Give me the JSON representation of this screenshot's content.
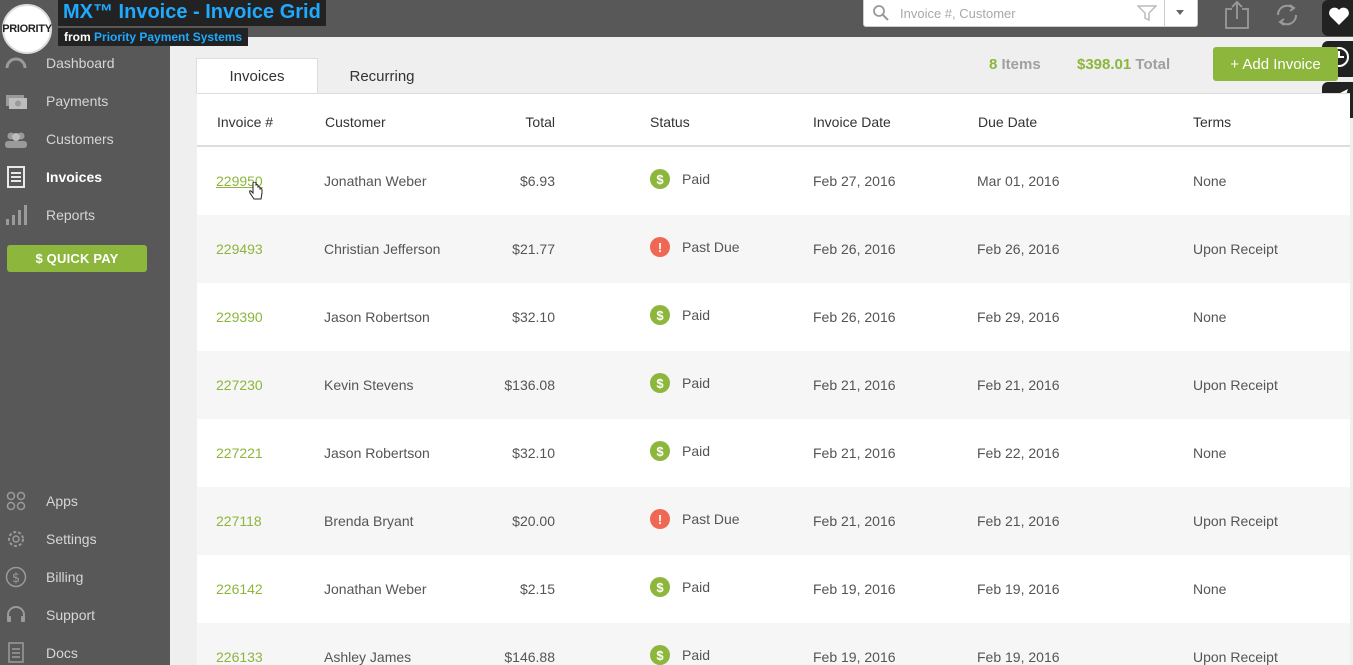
{
  "brand": {
    "logo_text": "PRIORITY",
    "title": "MX™ Invoice - Invoice Grid",
    "from_label": "from",
    "company": "Priority Payment Systems"
  },
  "sidebar": {
    "items": [
      {
        "label": "Dashboard",
        "icon": "dashboard-icon"
      },
      {
        "label": "Payments",
        "icon": "payments-icon"
      },
      {
        "label": "Customers",
        "icon": "customers-icon"
      },
      {
        "label": "Invoices",
        "icon": "invoices-icon",
        "active": true
      },
      {
        "label": "Reports",
        "icon": "reports-icon"
      }
    ],
    "quick_pay": "$ QUICK PAY",
    "bottom_items": [
      {
        "label": "Apps",
        "icon": "apps-icon"
      },
      {
        "label": "Settings",
        "icon": "gear-icon"
      },
      {
        "label": "Billing",
        "icon": "dollar-icon"
      },
      {
        "label": "Support",
        "icon": "headset-icon"
      },
      {
        "label": "Docs",
        "icon": "doc-icon"
      }
    ]
  },
  "search": {
    "placeholder": "Invoice #, Customer"
  },
  "tabs": [
    {
      "label": "Invoices",
      "active": true
    },
    {
      "label": "Recurring",
      "active": false
    }
  ],
  "summary": {
    "items_count": "8",
    "items_label": "Items",
    "total_value": "$398.01",
    "total_label": "Total"
  },
  "add_button": "+ Add Invoice",
  "table": {
    "columns": [
      "Invoice #",
      "Customer",
      "Total",
      "Status",
      "Invoice Date",
      "Due Date",
      "Terms"
    ],
    "rows": [
      {
        "invoice": "229950",
        "customer": "Jonathan Weber",
        "total": "$6.93",
        "status": "Paid",
        "invoice_date": "Feb 27, 2016",
        "due_date": "Mar 01, 2016",
        "terms": "None"
      },
      {
        "invoice": "229493",
        "customer": "Christian Jefferson",
        "total": "$21.77",
        "status": "Past Due",
        "invoice_date": "Feb 26, 2016",
        "due_date": "Feb 26, 2016",
        "terms": "Upon Receipt"
      },
      {
        "invoice": "229390",
        "customer": "Jason Robertson",
        "total": "$32.10",
        "status": "Paid",
        "invoice_date": "Feb 26, 2016",
        "due_date": "Feb 29, 2016",
        "terms": "None"
      },
      {
        "invoice": "227230",
        "customer": "Kevin Stevens",
        "total": "$136.08",
        "status": "Paid",
        "invoice_date": "Feb 21, 2016",
        "due_date": "Feb 21, 2016",
        "terms": "Upon Receipt"
      },
      {
        "invoice": "227221",
        "customer": "Jason Robertson",
        "total": "$32.10",
        "status": "Paid",
        "invoice_date": "Feb 21, 2016",
        "due_date": "Feb 22, 2016",
        "terms": "None"
      },
      {
        "invoice": "227118",
        "customer": "Brenda Bryant",
        "total": "$20.00",
        "status": "Past Due",
        "invoice_date": "Feb 21, 2016",
        "due_date": "Feb 21, 2016",
        "terms": "Upon Receipt"
      },
      {
        "invoice": "226142",
        "customer": "Jonathan Weber",
        "total": "$2.15",
        "status": "Paid",
        "invoice_date": "Feb 19, 2016",
        "due_date": "Feb 19, 2016",
        "terms": "None"
      },
      {
        "invoice": "226133",
        "customer": "Ashley James",
        "total": "$146.88",
        "status": "Paid",
        "invoice_date": "Feb 19, 2016",
        "due_date": "Feb 19, 2016",
        "terms": "Upon Receipt"
      }
    ]
  },
  "colors": {
    "accent": "#8db63c",
    "past_due": "#f06754",
    "sidebar_bg": "#585858",
    "brand_blue": "#1fa9ff"
  }
}
